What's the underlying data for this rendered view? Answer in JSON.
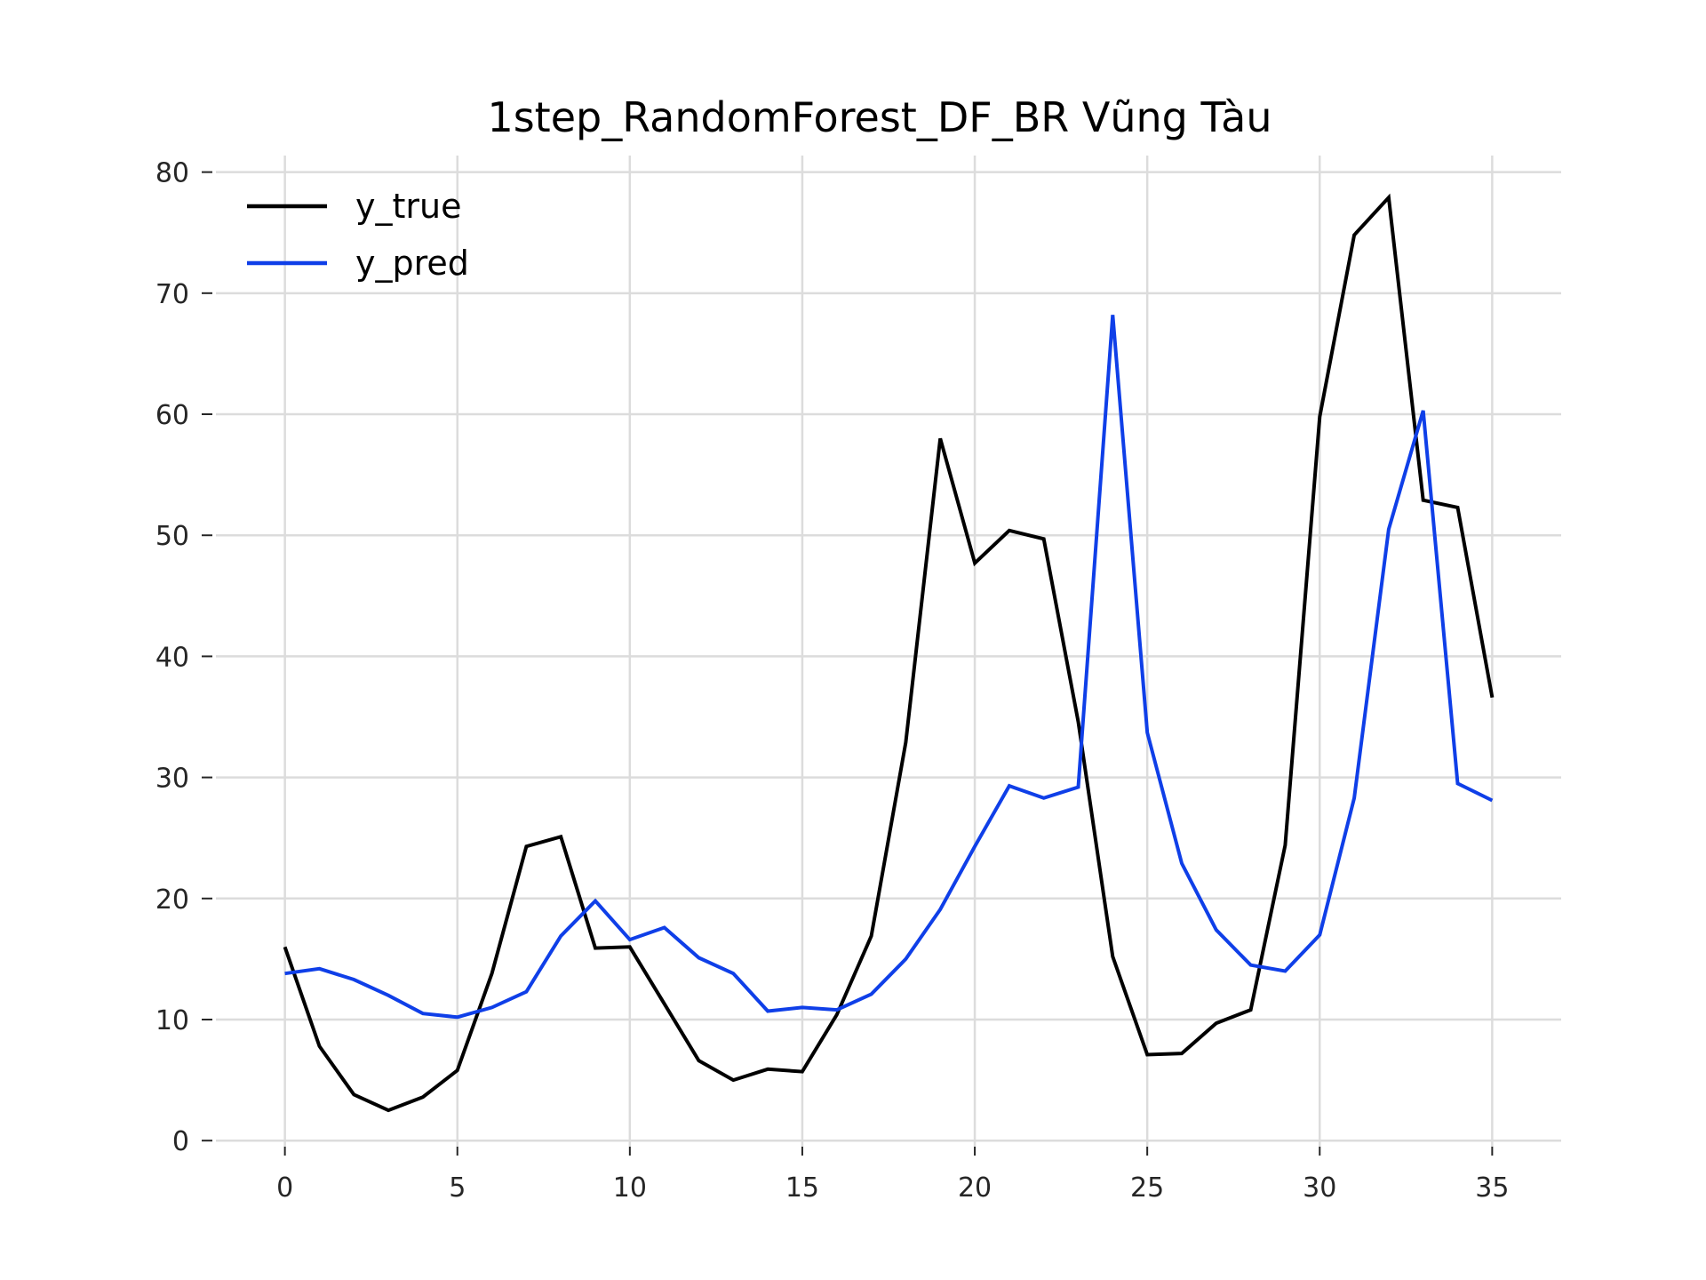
{
  "chart_data": {
    "type": "line",
    "title": "1step_RandomForest_DF_BR Vũng Tàu",
    "xlabel": "",
    "ylabel": "",
    "xlim": [
      -2,
      37
    ],
    "ylim": [
      -0.5,
      81
    ],
    "xticks": [
      0,
      5,
      10,
      15,
      20,
      25,
      30,
      35
    ],
    "yticks": [
      0,
      10,
      20,
      30,
      40,
      50,
      60,
      70,
      80
    ],
    "grid": true,
    "legend_position": "top-left",
    "x": [
      0,
      1,
      2,
      3,
      4,
      5,
      6,
      7,
      8,
      9,
      10,
      11,
      12,
      13,
      14,
      15,
      16,
      17,
      18,
      19,
      20,
      21,
      22,
      23,
      24,
      25,
      26,
      27,
      28,
      29,
      30,
      31,
      32,
      33,
      34,
      35
    ],
    "series": [
      {
        "name": "y_true",
        "color": "#000000",
        "values": [
          16.0,
          7.8,
          3.8,
          2.5,
          3.6,
          5.8,
          13.8,
          24.3,
          25.1,
          15.9,
          16.0,
          11.3,
          6.6,
          5.0,
          5.9,
          5.7,
          10.4,
          16.9,
          32.9,
          58.0,
          47.7,
          50.4,
          49.7,
          34.6,
          15.2,
          7.1,
          7.2,
          9.7,
          10.8,
          24.4,
          59.8,
          74.8,
          77.9,
          52.9,
          52.3,
          36.6
        ]
      },
      {
        "name": "y_pred",
        "color": "#0f3fe8",
        "values": [
          13.8,
          14.2,
          13.3,
          12.0,
          10.5,
          10.2,
          11.0,
          12.3,
          16.9,
          19.8,
          16.6,
          17.6,
          15.1,
          13.8,
          10.7,
          11.0,
          10.8,
          12.1,
          15.0,
          19.1,
          24.3,
          29.3,
          28.3,
          29.2,
          68.2,
          33.7,
          22.9,
          17.4,
          14.5,
          14.0,
          17.0,
          28.3,
          50.5,
          60.3,
          29.5,
          28.1
        ]
      }
    ]
  }
}
